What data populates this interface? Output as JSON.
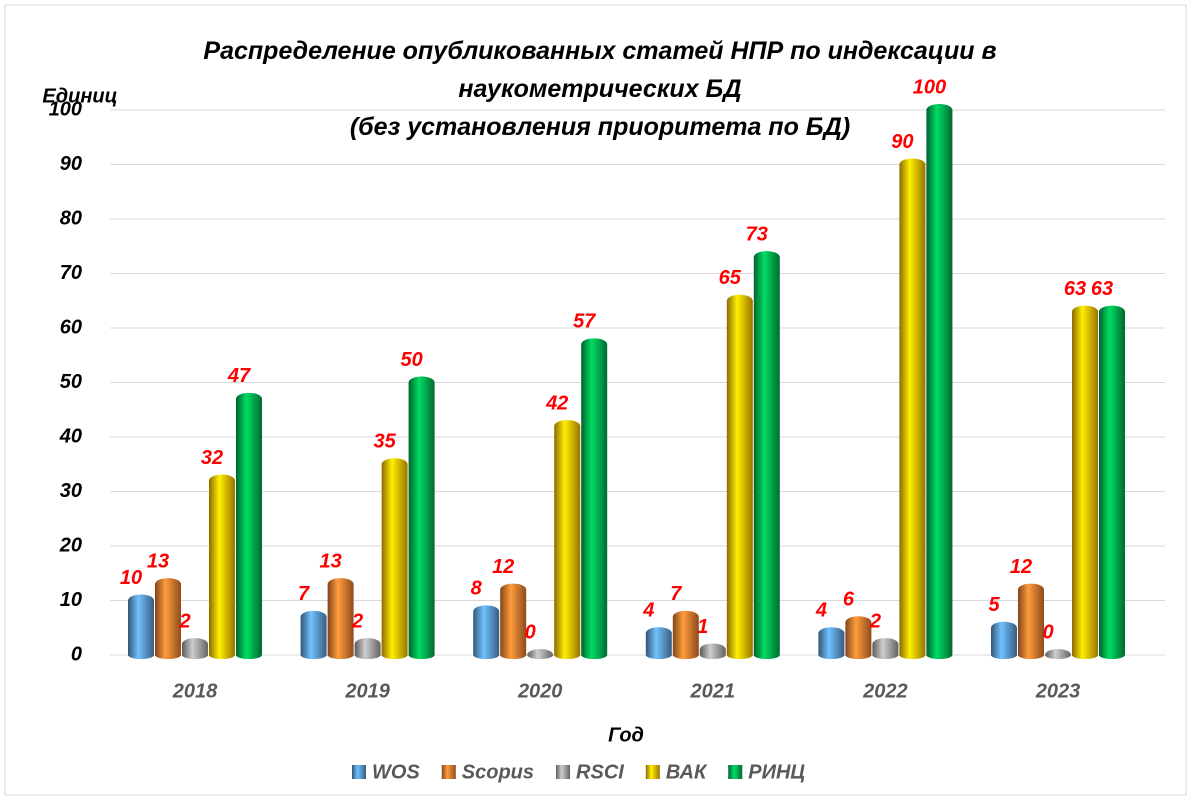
{
  "chart_data": {
    "type": "bar",
    "title": "Распределение опубликованных статей НПР по индексации в наукометрических БД",
    "subtitle": "(без установления приоритета по БД)",
    "ylabel": "Единиц",
    "xlabel": "Год",
    "categories": [
      "2018",
      "2019",
      "2020",
      "2021",
      "2022",
      "2023"
    ],
    "series": [
      {
        "name": "WOS",
        "color": "#5b9bd5",
        "values": [
          10,
          7,
          8,
          4,
          4,
          5
        ]
      },
      {
        "name": "Scopus",
        "color": "#ed7d31",
        "values": [
          13,
          13,
          12,
          7,
          6,
          12
        ]
      },
      {
        "name": "RSCI",
        "color": "#a5a5a5",
        "values": [
          2,
          2,
          0,
          1,
          2,
          0
        ]
      },
      {
        "name": "ВАК",
        "color": "#ffc000",
        "values": [
          32,
          35,
          42,
          65,
          90,
          63
        ]
      },
      {
        "name": "РИНЦ",
        "color": "#00b050",
        "values": [
          47,
          50,
          57,
          73,
          100,
          63
        ]
      }
    ],
    "ylim": [
      0,
      100
    ],
    "yticks": [
      0,
      10,
      20,
      30,
      40,
      50,
      60,
      70,
      80,
      90,
      100
    ],
    "grid": true,
    "legend": "bottom",
    "label_color": "#ff0000"
  }
}
